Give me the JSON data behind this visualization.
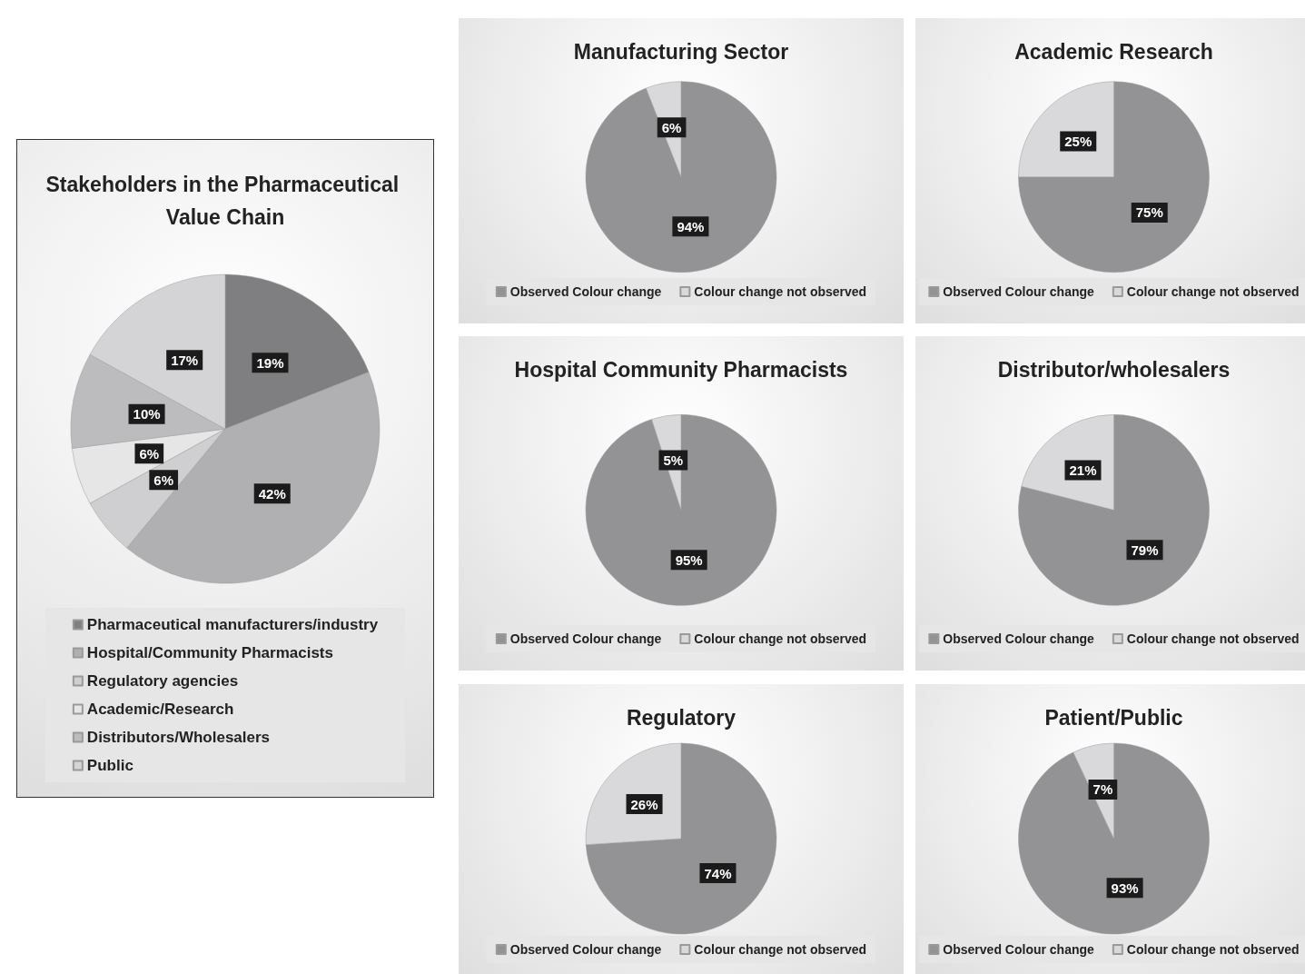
{
  "chart_data": [
    {
      "type": "pie",
      "title": "Stakeholders in the Pharmaceutical Value Chain",
      "categories": [
        "Pharmaceutical manufacturers/industry",
        "Hospital/Community Pharmacists",
        "Regulatory agencies",
        "Academic/Research",
        "Distributors/Wholesalers",
        "Public"
      ],
      "values": [
        19,
        42,
        6,
        6,
        10,
        17
      ],
      "value_labels": [
        "19%",
        "42%",
        "6%",
        "6%",
        "10%",
        "17%"
      ],
      "colors": [
        "#7f7f81",
        "#b0b0b2",
        "#cfcfd1",
        "#e6e6e7",
        "#bcbcbe",
        "#d4d4d6"
      ],
      "legend": "bottom"
    },
    {
      "type": "pie",
      "title": "Manufacturing Sector",
      "categories": [
        "Observed Colour change",
        "Colour change not observed"
      ],
      "values": [
        94,
        6
      ],
      "value_labels": [
        "94%",
        "6%"
      ],
      "colors": [
        "#939395",
        "#d9d9db"
      ],
      "legend": "bottom"
    },
    {
      "type": "pie",
      "title": "Academic Research",
      "categories": [
        "Observed Colour change",
        "Colour change not observed"
      ],
      "values": [
        75,
        25
      ],
      "value_labels": [
        "75%",
        "25%"
      ],
      "colors": [
        "#939395",
        "#d9d9db"
      ],
      "legend": "bottom"
    },
    {
      "type": "pie",
      "title": "Hospital Community Pharmacists",
      "categories": [
        "Observed Colour change",
        "Colour change not observed"
      ],
      "values": [
        95,
        5
      ],
      "value_labels": [
        "95%",
        "5%"
      ],
      "colors": [
        "#939395",
        "#d9d9db"
      ],
      "legend": "bottom"
    },
    {
      "type": "pie",
      "title": "Distributor/wholesalers",
      "categories": [
        "Observed Colour change",
        "Colour change not observed"
      ],
      "values": [
        79,
        21
      ],
      "value_labels": [
        "79%",
        "21%"
      ],
      "colors": [
        "#939395",
        "#d9d9db"
      ],
      "legend": "bottom"
    },
    {
      "type": "pie",
      "title": "Regulatory",
      "categories": [
        "Observed Colour change",
        "Colour change not observed"
      ],
      "values": [
        74,
        26
      ],
      "value_labels": [
        "74%",
        "26%"
      ],
      "colors": [
        "#939395",
        "#d9d9db"
      ],
      "legend": "bottom"
    },
    {
      "type": "pie",
      "title": "Patient/Public",
      "categories": [
        "Observed Colour change",
        "Colour change not observed"
      ],
      "values": [
        93,
        7
      ],
      "value_labels": [
        "93%",
        "7%"
      ],
      "colors": [
        "#939395",
        "#d9d9db"
      ],
      "legend": "bottom"
    }
  ]
}
